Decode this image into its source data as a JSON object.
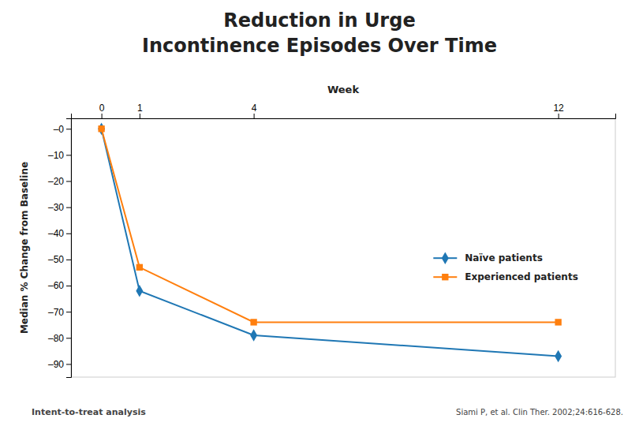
{
  "chart_data": {
    "type": "line",
    "title": "Reduction in Urge",
    "subtitle": "Incontinence Episodes Over Time",
    "x_label": "Week",
    "y_label": "Median % Change from Baseline",
    "x": [
      0,
      1,
      4,
      12
    ],
    "xlim": [
      -0.8,
      13.5
    ],
    "xticks": [
      0,
      1,
      4,
      12
    ],
    "ylim": [
      -95,
      4
    ],
    "yticks": [
      {
        "value": 0,
        "label": "–0"
      },
      {
        "value": -10,
        "label": "–10"
      },
      {
        "value": -20,
        "label": "–20"
      },
      {
        "value": -30,
        "label": "–30"
      },
      {
        "value": -40,
        "label": "–40"
      },
      {
        "value": -50,
        "label": "–50"
      },
      {
        "value": -60,
        "label": "–60"
      },
      {
        "value": -70,
        "label": "–70"
      },
      {
        "value": -80,
        "label": "–80"
      },
      {
        "value": -90,
        "label": "–90"
      }
    ],
    "series": [
      {
        "name": "Naïve patients",
        "marker": "diamond",
        "values": [
          0,
          -62,
          -79,
          -87
        ]
      },
      {
        "name": "Experienced patients",
        "marker": "square",
        "values": [
          0,
          -53,
          -74,
          -74
        ]
      }
    ],
    "legend": "lower right",
    "grid": false,
    "annotations": [
      "Intent-to-treat analysis",
      "Siami P, et al. Clin Ther. 2002;24:616-628."
    ]
  }
}
